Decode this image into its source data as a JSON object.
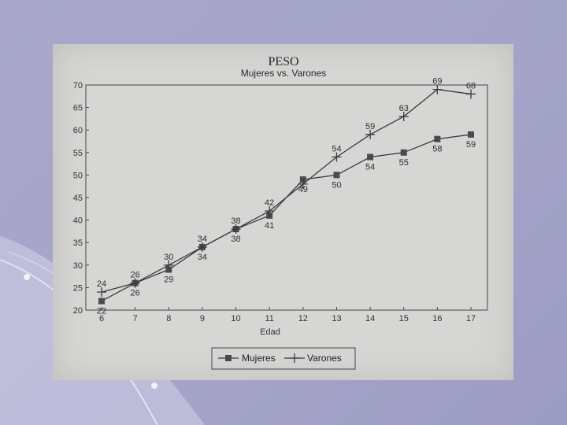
{
  "chart_data": {
    "type": "line",
    "title": "PESO",
    "subtitle": "Mujeres vs. Varones",
    "xlabel": "Edad",
    "ylabel": "",
    "x": [
      6,
      7,
      8,
      9,
      10,
      11,
      12,
      13,
      14,
      15,
      16,
      17
    ],
    "xlim": [
      6,
      17
    ],
    "ylim": [
      20,
      70
    ],
    "yticks": [
      20,
      25,
      30,
      35,
      40,
      45,
      50,
      55,
      60,
      65,
      70
    ],
    "grid": false,
    "legend_position": "bottom",
    "series": [
      {
        "name": "Mujeres",
        "marker": "square",
        "values": [
          22,
          26,
          29,
          34,
          38,
          41,
          49,
          50,
          54,
          55,
          58,
          59
        ],
        "labels": [
          "22",
          "26",
          "29",
          "34",
          "38",
          "41",
          "49",
          "50",
          "54",
          "55",
          "58",
          "59"
        ]
      },
      {
        "name": "Varones",
        "marker": "plus",
        "values": [
          24,
          26,
          30,
          34,
          38,
          42,
          48,
          54,
          59,
          63,
          69,
          68
        ],
        "labels": [
          "24",
          "26",
          "30",
          "34",
          "38",
          "42",
          "",
          "54",
          "59",
          "63",
          "69",
          "68"
        ]
      }
    ],
    "colors": {
      "line": "#3a3a3a",
      "marker": "#4a4a4a"
    }
  }
}
